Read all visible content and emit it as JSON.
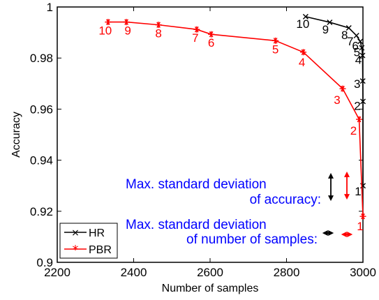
{
  "chart_data": {
    "type": "line",
    "xlabel": "Number of samples",
    "ylabel": "Accuracy",
    "xlim": [
      2200,
      3000
    ],
    "ylim": [
      0.9,
      1.0
    ],
    "xticks": [
      "2200",
      "2400",
      "2600",
      "2800",
      "3000"
    ],
    "yticks": [
      "0.9",
      "0.92",
      "0.94",
      "0.96",
      "0.98",
      "1"
    ],
    "xtick_values": [
      2200,
      2400,
      2600,
      2800,
      3000
    ],
    "ytick_values": [
      0.9,
      0.92,
      0.94,
      0.96,
      0.98,
      1.0
    ],
    "grid": false,
    "legend_position": "bottom-left",
    "series": [
      {
        "name": "HR",
        "color": "#000000",
        "marker": "x",
        "points": [
          {
            "x": 2850,
            "y": 0.9962,
            "label": "10"
          },
          {
            "x": 2913,
            "y": 0.994,
            "label": "9"
          },
          {
            "x": 2963,
            "y": 0.9918,
            "label": "8"
          },
          {
            "x": 2983,
            "y": 0.9888,
            "label": "7"
          },
          {
            "x": 2993,
            "y": 0.9865,
            "label": "6"
          },
          {
            "x": 2997,
            "y": 0.984,
            "label": "5"
          },
          {
            "x": 2999,
            "y": 0.981,
            "label": "4"
          },
          {
            "x": 2999.5,
            "y": 0.971,
            "label": "3"
          },
          {
            "x": 3000,
            "y": 0.963,
            "label": "2"
          },
          {
            "x": 3000,
            "y": 0.93,
            "label": "1"
          }
        ]
      },
      {
        "name": "PBR",
        "color": "#ff0000",
        "marker": "*",
        "points": [
          {
            "x": 2333,
            "y": 0.9941,
            "label": "10"
          },
          {
            "x": 2381,
            "y": 0.9941,
            "label": "9"
          },
          {
            "x": 2465,
            "y": 0.993,
            "label": "8"
          },
          {
            "x": 2565,
            "y": 0.9912,
            "label": "7"
          },
          {
            "x": 2603,
            "y": 0.9893,
            "label": "6"
          },
          {
            "x": 2771,
            "y": 0.9868,
            "label": "5"
          },
          {
            "x": 2844,
            "y": 0.9823,
            "label": "4"
          },
          {
            "x": 2947,
            "y": 0.968,
            "label": "3"
          },
          {
            "x": 2990,
            "y": 0.956,
            "label": "2"
          },
          {
            "x": 3000,
            "y": 0.918,
            "label": "1"
          }
        ]
      }
    ],
    "annotations": {
      "accuracy_line1": "Max. standard deviation",
      "accuracy_line2": "of accuracy:",
      "samples_line1": "Max. standard deviation",
      "samples_line2": "of number of samples:",
      "accuracy_std": {
        "HR": 0.011,
        "PBR": 0.011
      },
      "samples_std": {
        "HR": 30,
        "PBR": 30
      }
    }
  }
}
